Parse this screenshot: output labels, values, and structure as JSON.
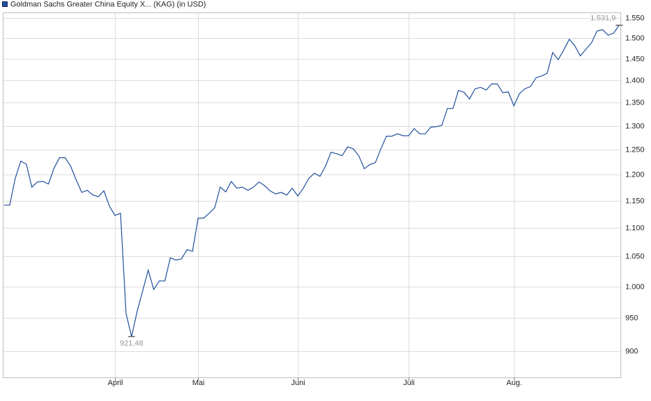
{
  "chart_data": {
    "type": "line",
    "categories": [
      null,
      null,
      null,
      null,
      null,
      null,
      null,
      null,
      null,
      null,
      null,
      null,
      null,
      null,
      null,
      null,
      null,
      null,
      null,
      null,
      "April",
      null,
      null,
      null,
      null,
      null,
      null,
      null,
      null,
      null,
      null,
      null,
      null,
      null,
      null,
      "Mai",
      null,
      null,
      null,
      null,
      null,
      null,
      null,
      null,
      null,
      null,
      null,
      null,
      null,
      null,
      null,
      null,
      null,
      "Juni",
      null,
      null,
      null,
      null,
      null,
      null,
      null,
      null,
      null,
      null,
      null,
      null,
      null,
      null,
      null,
      null,
      null,
      null,
      null,
      "Juli",
      null,
      null,
      null,
      null,
      null,
      null,
      null,
      null,
      null,
      null,
      null,
      null,
      null,
      null,
      null,
      null,
      null,
      null,
      "Aug.",
      null,
      null,
      null,
      null,
      null,
      null,
      null,
      null,
      null,
      null,
      null,
      null,
      null,
      null,
      null,
      null,
      null,
      null,
      null
    ],
    "series": [
      {
        "name": "Goldman Sachs Greater China Equity X... (KAG) (in USD)",
        "color": "#1f4e9c",
        "values": [
          1142,
          1142,
          1193,
          1227,
          1221,
          1176,
          1186,
          1187,
          1182,
          1213,
          1234,
          1234,
          1217,
          1190,
          1166,
          1170,
          1161,
          1158,
          1169,
          1140,
          1123,
          1127,
          957,
          921.48,
          960,
          993,
          1027,
          995,
          1009,
          1009,
          1048,
          1044,
          1046,
          1062,
          1059,
          1118,
          1118,
          1127,
          1137,
          1176,
          1167,
          1187,
          1174,
          1176,
          1170,
          1176,
          1186,
          1179,
          1169,
          1163,
          1166,
          1161,
          1174,
          1159,
          1174,
          1193,
          1203,
          1197,
          1217,
          1245,
          1242,
          1238,
          1256,
          1252,
          1238,
          1212,
          1220,
          1224,
          1252,
          1278,
          1278,
          1283,
          1279,
          1279,
          1294,
          1283,
          1283,
          1297,
          1298,
          1301,
          1337,
          1337,
          1377,
          1373,
          1358,
          1381,
          1384,
          1378,
          1392,
          1392,
          1372,
          1374,
          1343,
          1370,
          1381,
          1386,
          1406,
          1410,
          1416,
          1465,
          1448,
          1471,
          1497,
          1481,
          1457,
          1473,
          1488,
          1517,
          1521,
          1507,
          1512,
          1531.9
        ],
        "value_labels": [
          null,
          null,
          null,
          null,
          null,
          null,
          null,
          null,
          null,
          null,
          null,
          null,
          null,
          null,
          null,
          null,
          null,
          null,
          null,
          null,
          null,
          null,
          null,
          "921,48",
          null,
          null,
          null,
          null,
          null,
          null,
          null,
          null,
          null,
          null,
          null,
          null,
          null,
          null,
          null,
          null,
          null,
          null,
          null,
          null,
          null,
          null,
          null,
          null,
          null,
          null,
          null,
          null,
          null,
          null,
          null,
          null,
          null,
          null,
          null,
          null,
          null,
          null,
          null,
          null,
          null,
          null,
          null,
          null,
          null,
          null,
          null,
          null,
          null,
          null,
          null,
          null,
          null,
          null,
          null,
          null,
          null,
          null,
          null,
          null,
          null,
          null,
          null,
          null,
          null,
          null,
          null,
          null,
          null,
          null,
          null,
          null,
          null,
          null,
          null,
          null,
          null,
          null,
          null,
          null,
          null,
          null,
          null,
          null,
          null,
          null,
          null,
          "1.531,9"
        ]
      }
    ],
    "ylim": [
      862,
      1564
    ],
    "log_scale": true,
    "grid": true,
    "yticks": [
      900,
      950,
      {
        "value": 1000,
        "label": "1.000"
      },
      {
        "value": 1050,
        "label": "1.050"
      },
      {
        "value": 1100,
        "label": "1.100"
      },
      {
        "value": 1150,
        "label": "1.150"
      },
      {
        "value": 1200,
        "label": "1.200"
      },
      {
        "value": 1250,
        "label": "1.250"
      },
      {
        "value": 1300,
        "label": "1.300"
      },
      {
        "value": 1350,
        "label": "1.350"
      },
      {
        "value": 1400,
        "label": "1.400"
      },
      {
        "value": 1450,
        "label": "1.450"
      },
      {
        "value": 1500,
        "label": "1.500"
      },
      {
        "value": 1550,
        "label": "1.550"
      }
    ]
  }
}
